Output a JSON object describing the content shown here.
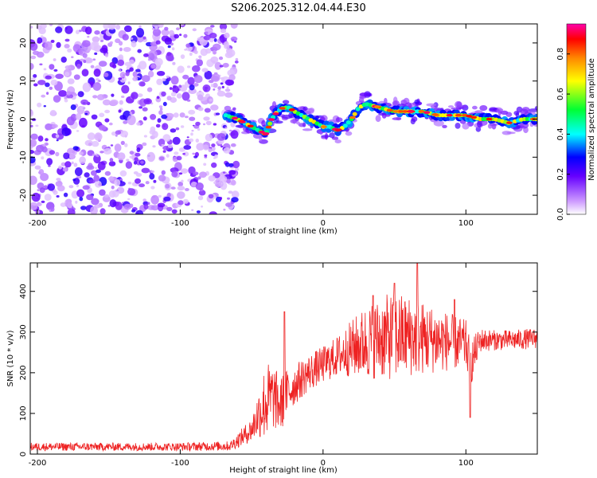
{
  "title": "S206.2025.312.04.44.E30",
  "colors": {
    "snr_line": "#ee2222"
  },
  "chart_data": [
    {
      "type": "heatmap",
      "name": "spectrogram",
      "xlabel": "Height of straight line (km)",
      "ylabel": "Frequency (Hz)",
      "xlim": [
        -205,
        150
      ],
      "ylim": [
        -25,
        25
      ],
      "xticks": [
        -200,
        -100,
        0,
        100
      ],
      "yticks": [
        -20,
        -10,
        0,
        10,
        20
      ],
      "noise_region_x": [
        -205,
        -60
      ],
      "ridge": {
        "x": [
          -68,
          -60,
          -55,
          -50,
          -45,
          -40,
          -36,
          -32,
          -28,
          -24,
          -20,
          -15,
          -10,
          -5,
          0,
          5,
          10,
          15,
          20,
          25,
          30,
          40,
          50,
          60,
          70,
          80,
          90,
          97,
          100,
          110,
          120,
          130,
          140,
          150
        ],
        "freq": [
          1,
          0,
          -1,
          -2,
          -3,
          -4,
          0,
          2,
          3,
          3,
          2,
          1,
          0,
          -1,
          -2,
          -2,
          -3,
          -2,
          0,
          3,
          4,
          3,
          2,
          2,
          2,
          1,
          1,
          1,
          1,
          0,
          0,
          -1,
          0,
          0
        ]
      },
      "colorbar": {
        "label": "Normalized spectral amplitude",
        "range": [
          0,
          0.95
        ],
        "ticks": [
          0.0,
          0.2,
          0.4,
          0.6,
          0.8
        ]
      }
    },
    {
      "type": "line",
      "name": "snr",
      "xlabel": "Height of straight line (km)",
      "ylabel": "SNR (10 * v/v)",
      "xlim": [
        -205,
        150
      ],
      "ylim": [
        0,
        470
      ],
      "xticks": [
        -200,
        -100,
        0,
        100
      ],
      "yticks": [
        0,
        100,
        200,
        300,
        400
      ],
      "envelope": {
        "x": [
          -205,
          -150,
          -100,
          -65,
          -50,
          -45,
          -40,
          -35,
          -30,
          -25,
          -20,
          -10,
          0,
          10,
          20,
          30,
          40,
          50,
          60,
          70,
          80,
          90,
          100,
          103,
          110,
          120,
          130,
          140,
          150
        ],
        "mean": [
          18,
          18,
          18,
          20,
          60,
          100,
          130,
          140,
          120,
          150,
          170,
          200,
          220,
          240,
          260,
          275,
          285,
          290,
          290,
          285,
          280,
          275,
          270,
          220,
          280,
          280,
          280,
          282,
          285
        ],
        "spread": [
          10,
          10,
          10,
          12,
          30,
          60,
          100,
          80,
          70,
          60,
          50,
          45,
          45,
          50,
          70,
          90,
          100,
          110,
          100,
          90,
          80,
          70,
          60,
          60,
          30,
          25,
          25,
          25,
          25
        ]
      },
      "peaks": [
        {
          "x": -27,
          "y": 350
        },
        {
          "x": 35,
          "y": 390
        },
        {
          "x": 50,
          "y": 420
        },
        {
          "x": 66,
          "y": 470
        },
        {
          "x": 92,
          "y": 380
        },
        {
          "x": 103,
          "y": 90
        }
      ]
    }
  ]
}
